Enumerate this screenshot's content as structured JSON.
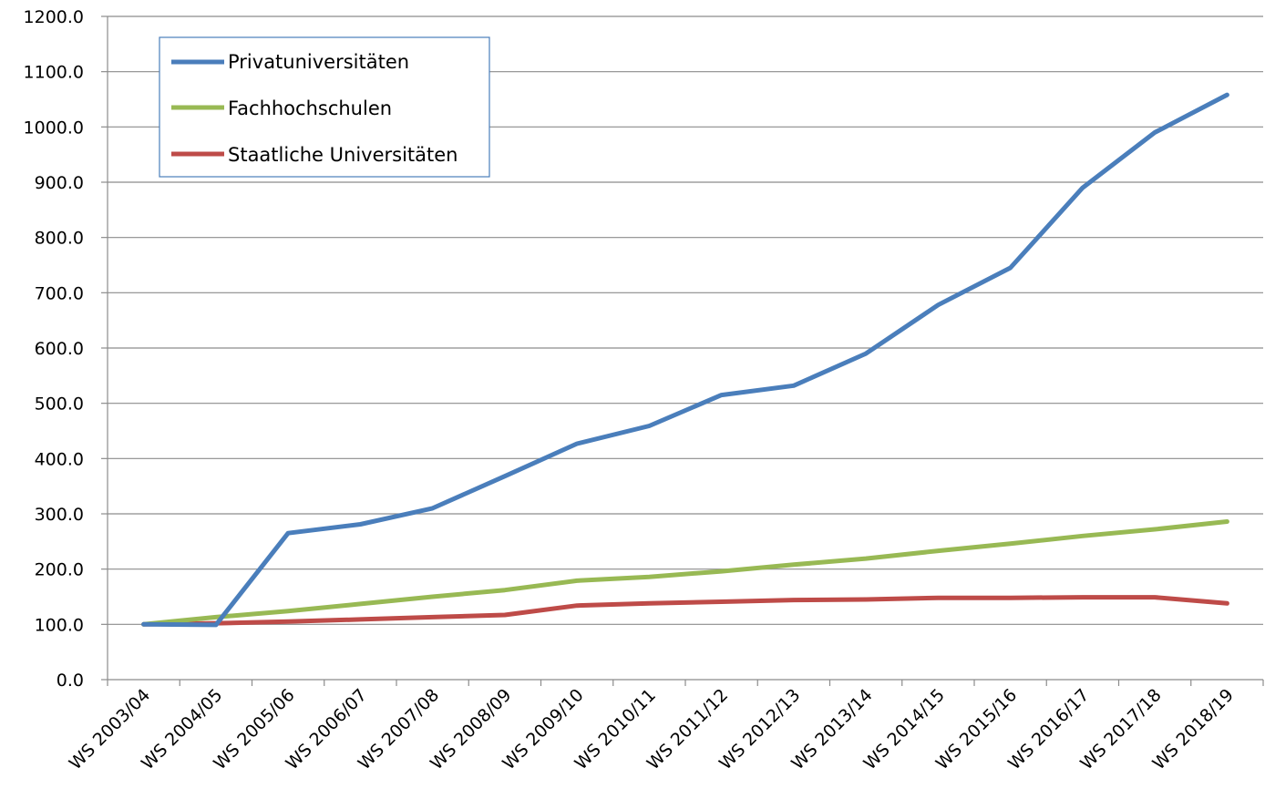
{
  "chart_data": {
    "type": "line",
    "title": "",
    "xlabel": "",
    "ylabel": "",
    "categories": [
      "WS 2003/04",
      "WS 2004/05",
      "WS 2005/06",
      "WS 2006/07",
      "WS 2007/08",
      "WS 2008/09",
      "WS 2009/10",
      "WS 2010/11",
      "WS 2011/12",
      "WS 2012/13",
      "WS 2013/14",
      "WS 2014/15",
      "WS 2015/16",
      "WS 2016/17",
      "WS 2017/18",
      "WS 2018/19"
    ],
    "ylim": [
      0,
      1200
    ],
    "yticks": [
      "0.0",
      "100.0",
      "200.0",
      "300.0",
      "400.0",
      "500.0",
      "600.0",
      "700.0",
      "800.0",
      "900.0",
      "1000.0",
      "1100.0",
      "1200.0"
    ],
    "grid": true,
    "legend_position": "top-left",
    "series": [
      {
        "name": "Privatuniversitäten",
        "color": "#4A7EBB",
        "values": [
          100,
          99,
          265,
          281,
          310,
          368,
          427,
          459,
          515,
          532,
          590,
          678,
          745,
          890,
          990,
          1058
        ]
      },
      {
        "name": "Fachhochschulen",
        "color": "#98B954",
        "values": [
          100,
          113,
          124,
          137,
          150,
          162,
          179,
          186,
          196,
          208,
          219,
          233,
          246,
          260,
          272,
          286
        ]
      },
      {
        "name": "Staatliche Universitäten",
        "color": "#BE4B48",
        "values": [
          100,
          102,
          105,
          109,
          113,
          117,
          134,
          138,
          141,
          144,
          145,
          148,
          148,
          149,
          149,
          138
        ]
      }
    ]
  }
}
